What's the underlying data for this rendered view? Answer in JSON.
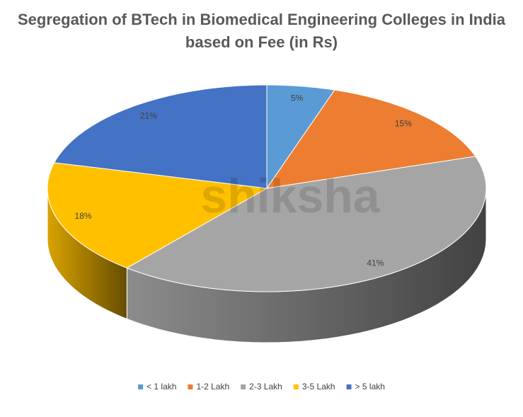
{
  "chart_data": {
    "type": "pie3d",
    "title": "Segregation of BTech in Biomedical Engineering Colleges in India based on Fee (in Rs)",
    "categories": [
      "< 1 lakh",
      "1-2 Lakh",
      "2-3 Lakh",
      "3-5 Lakh",
      "> 5 lakh"
    ],
    "values": [
      5,
      15,
      41,
      18,
      21
    ],
    "value_labels": [
      "5%",
      "15%",
      "41%",
      "18%",
      "21%"
    ],
    "colors": [
      "#5b9bd5",
      "#ed7d31",
      "#a5a5a5",
      "#ffc000",
      "#4472c4"
    ],
    "legend": "bottom",
    "watermark": "shiksha"
  }
}
